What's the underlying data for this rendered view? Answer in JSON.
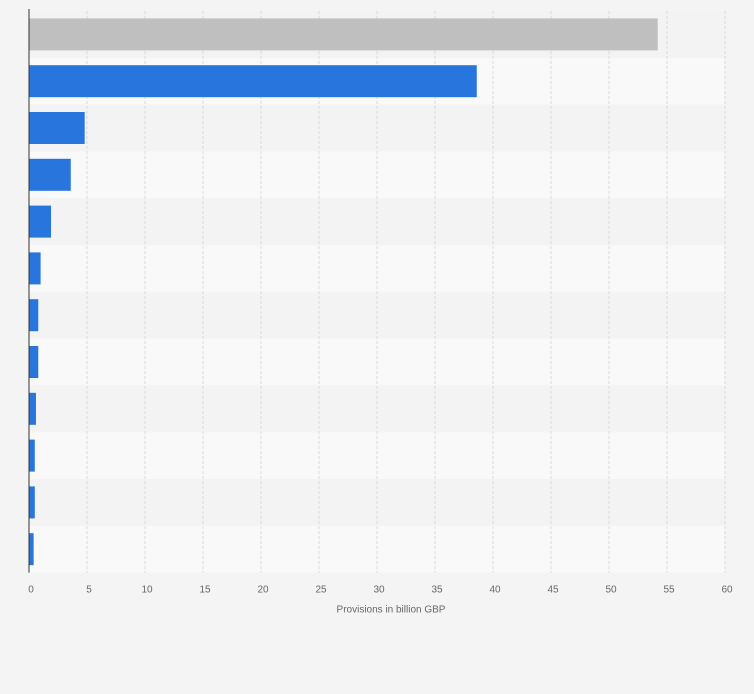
{
  "chart_data": {
    "type": "bar",
    "orientation": "horizontal",
    "categories": [
      "",
      "",
      "",
      "",
      "",
      "",
      "",
      "",
      "",
      "",
      "",
      ""
    ],
    "values": [
      54.2,
      38.6,
      4.8,
      3.6,
      1.9,
      1.0,
      0.8,
      0.8,
      0.6,
      0.5,
      0.5,
      0.4
    ],
    "xlabel": "Provisions in billion GBP",
    "xticks": [
      "0",
      "5",
      "10",
      "15",
      "20",
      "25",
      "30",
      "35",
      "40",
      "45",
      "50",
      "55",
      "60"
    ],
    "xlim": [
      0,
      60
    ],
    "grid": true,
    "legend": "none",
    "colors": {
      "highlight": "#bfbfbf",
      "bar": "#2876dd",
      "band_light": "#f9f9f9",
      "band_dark": "#f3f3f3",
      "grid": "#d9d9d9",
      "axis": "#333333",
      "tick_text": "#666666"
    }
  }
}
